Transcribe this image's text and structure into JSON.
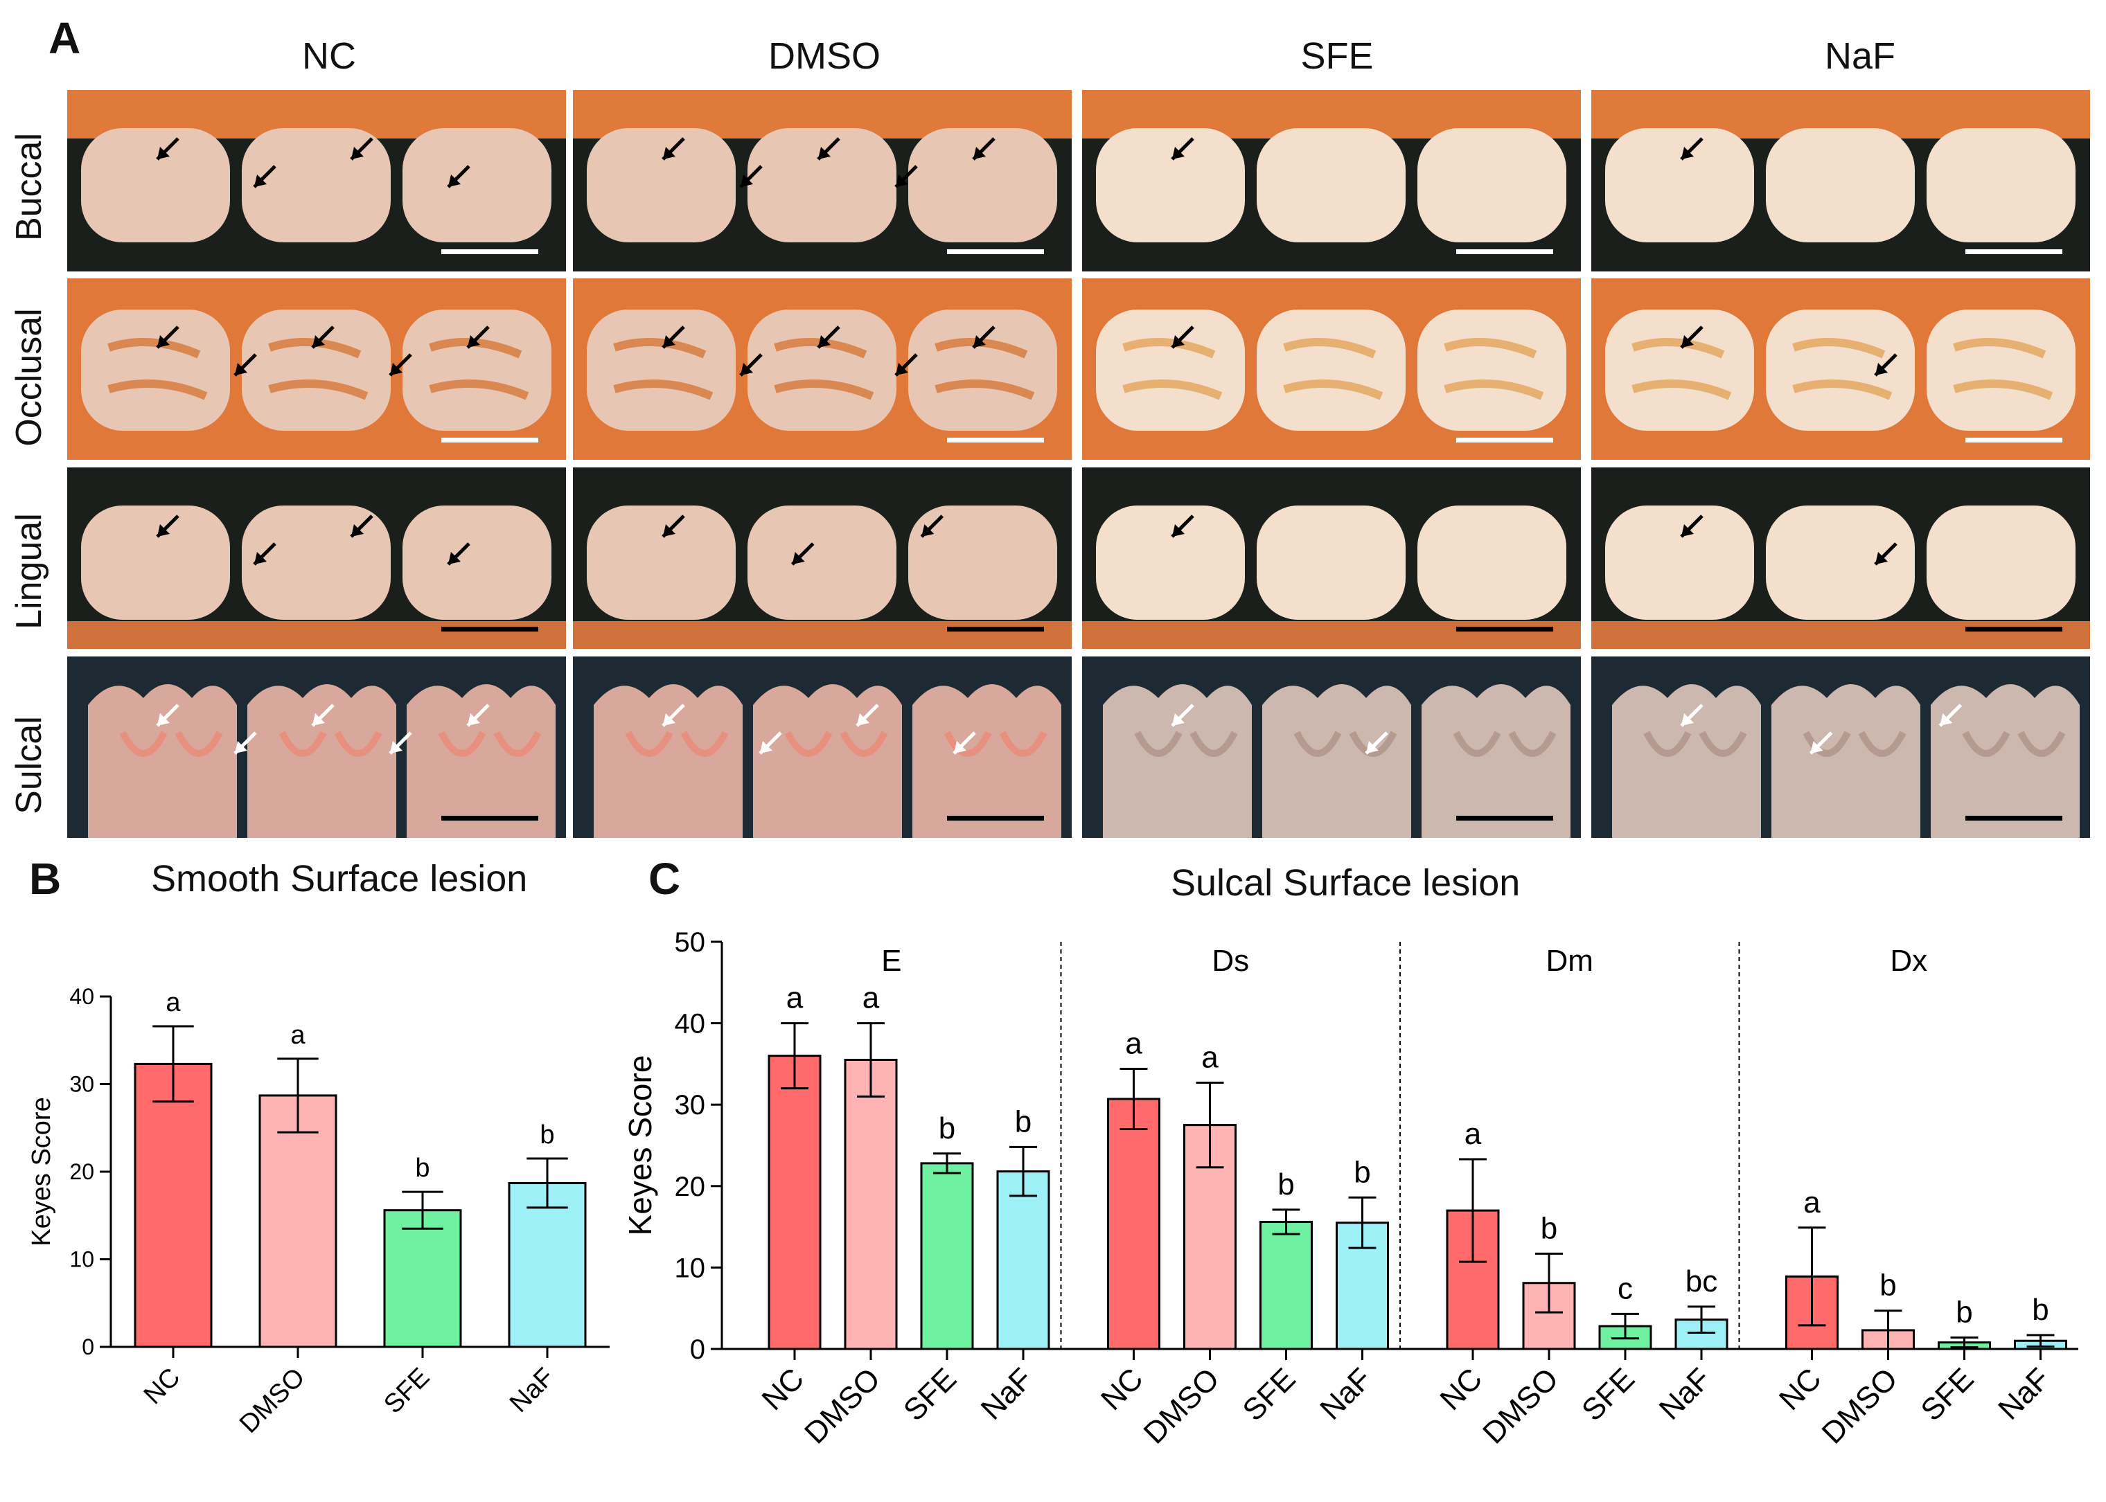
{
  "panel_labels": {
    "a": "A",
    "b": "B",
    "c": "C"
  },
  "panel_a": {
    "columns": [
      "NC",
      "DMSO",
      "SFE",
      "NaF"
    ],
    "rows": [
      "Buccal",
      "Occlusal",
      "Lingual",
      "Sulcal"
    ]
  },
  "colors": {
    "NC": "#ff6b6b",
    "DMSO": "#ffb3b3",
    "SFE": "#6ef0a0",
    "NaF": "#9ef0f7"
  },
  "chart_data": [
    {
      "type": "bar",
      "title": "Smooth Surface lesion",
      "ylabel": "Keyes Score",
      "xlabel": "",
      "ylim": [
        0,
        40
      ],
      "yticks": [
        "0",
        "10",
        "20",
        "30",
        "40"
      ],
      "categories": [
        "NC",
        "DMSO",
        "SFE",
        "NaF"
      ],
      "values": [
        32.3,
        28.7,
        15.6,
        18.7
      ],
      "errors": [
        4.3,
        4.2,
        2.1,
        2.8
      ],
      "letters": [
        "a",
        "a",
        "b",
        "b"
      ]
    },
    {
      "type": "bar",
      "title": "Sulcal Surface lesion",
      "ylabel": "Keyes Score",
      "xlabel": "",
      "ylim": [
        0,
        50
      ],
      "yticks": [
        "0",
        "10",
        "20",
        "30",
        "40",
        "50"
      ],
      "categories": [
        "NC",
        "DMSO",
        "SFE",
        "NaF"
      ],
      "groups": [
        {
          "name": "E",
          "values": [
            36.0,
            35.5,
            22.8,
            21.8
          ],
          "errors": [
            4.0,
            4.5,
            1.2,
            3.0
          ],
          "letters": [
            "a",
            "a",
            "b",
            "b"
          ]
        },
        {
          "name": "Ds",
          "values": [
            30.7,
            27.5,
            15.6,
            15.5
          ],
          "errors": [
            3.7,
            5.2,
            1.5,
            3.1
          ],
          "letters": [
            "a",
            "a",
            "b",
            "b"
          ]
        },
        {
          "name": "Dm",
          "values": [
            17.0,
            8.1,
            2.8,
            3.6
          ],
          "errors": [
            6.3,
            3.6,
            1.5,
            1.6
          ],
          "letters": [
            "a",
            "b",
            "c",
            "bc"
          ]
        },
        {
          "name": "Dx",
          "values": [
            8.9,
            2.3,
            0.8,
            1.0
          ],
          "errors": [
            6.0,
            2.4,
            0.6,
            0.7
          ],
          "letters": [
            "a",
            "b",
            "b",
            "b"
          ]
        }
      ]
    }
  ]
}
